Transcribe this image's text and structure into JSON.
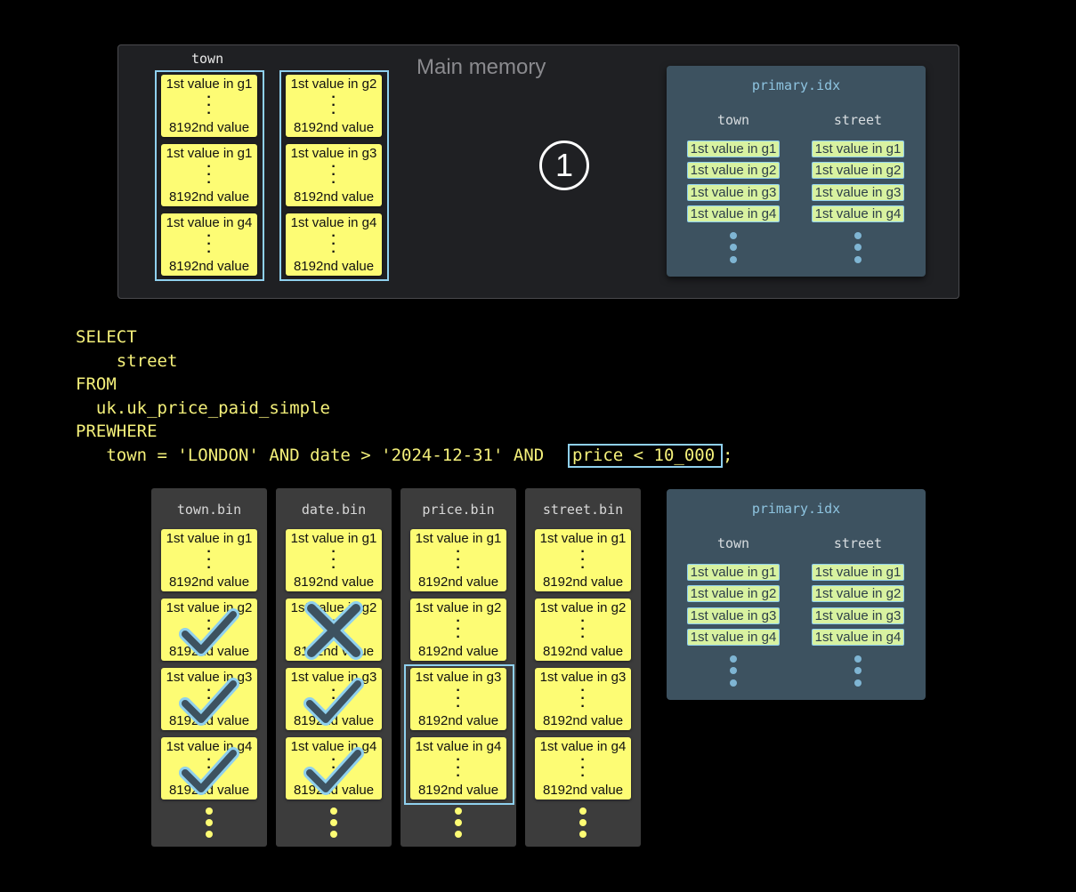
{
  "memory_panel": {
    "title": "Main memory",
    "column_label": "town",
    "columns": [
      {
        "cards": [
          {
            "first": "1st value in g1",
            "last": "8192nd value"
          },
          {
            "first": "1st value in g1",
            "last": "8192nd value"
          },
          {
            "first": "1st value in g4",
            "last": "8192nd value"
          }
        ]
      },
      {
        "cards": [
          {
            "first": "1st value in g2",
            "last": "8192nd value"
          },
          {
            "first": "1st value in g3",
            "last": "8192nd value"
          },
          {
            "first": "1st value in g4",
            "last": "8192nd value"
          }
        ]
      }
    ],
    "step": "1"
  },
  "primary_index": {
    "title": "primary.idx",
    "columns": [
      {
        "header": "town",
        "marks": [
          "1st value in g1",
          "1st value in g2",
          "1st value in g3",
          "1st value in g4"
        ]
      },
      {
        "header": "street",
        "marks": [
          "1st value in g1",
          "1st value in g2",
          "1st value in g3",
          "1st value in g4"
        ]
      }
    ]
  },
  "query": {
    "lines": [
      "SELECT",
      "    street",
      "FROM",
      "  uk.uk_price_paid_simple",
      "PREWHERE",
      "   town = 'LONDON' AND date > '2024-12-31' AND "
    ],
    "highlight": "price < 10_000",
    "end": ";"
  },
  "bins": [
    {
      "title": "town.bin",
      "status": [
        "",
        "check",
        "check",
        "check"
      ]
    },
    {
      "title": "date.bin",
      "status": [
        "",
        "cross",
        "check",
        "check"
      ]
    },
    {
      "title": "price.bin",
      "status": [
        "",
        "",
        "",
        ""
      ]
    },
    {
      "title": "street.bin",
      "status": [
        "",
        "",
        "",
        ""
      ]
    }
  ],
  "bin_cards": [
    {
      "first": "1st value in g1",
      "last": "8192nd value"
    },
    {
      "first": "1st value in g2",
      "last": "8192nd value"
    },
    {
      "first": "1st value in g3",
      "last": "8192nd value"
    },
    {
      "first": "1st value in g4",
      "last": "8192nd value"
    }
  ],
  "colors": {
    "card": "#fdfc74",
    "highlight": "#8fd0ee",
    "index_bg": "#3d5260",
    "sql": "#f4f07a"
  }
}
